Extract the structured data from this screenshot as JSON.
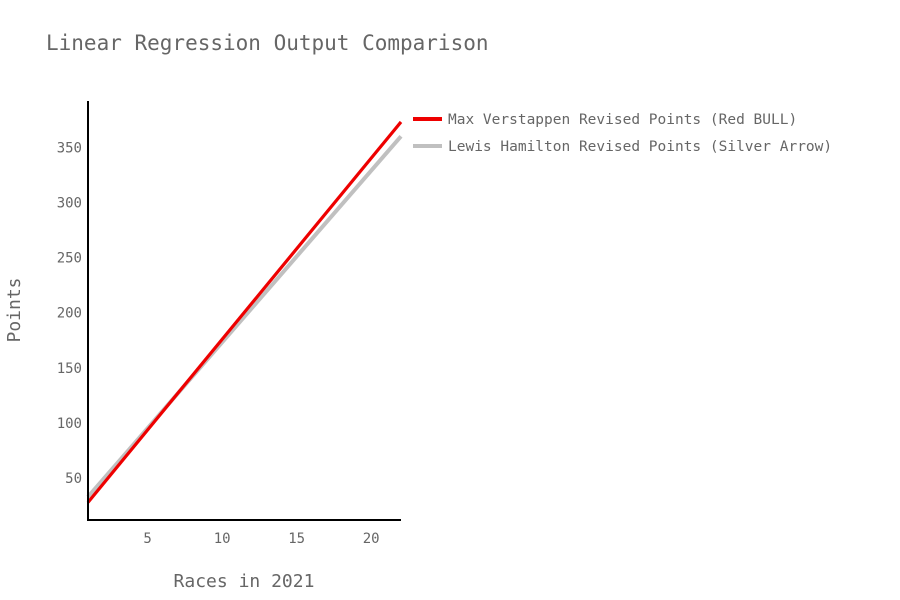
{
  "chart_data": {
    "type": "line",
    "title": "Linear Regression Output Comparison",
    "xlabel": "Races in 2021",
    "ylabel": "Points",
    "xlim": [
      1,
      22
    ],
    "ylim": [
      12,
      392
    ],
    "x_ticks": [
      5,
      10,
      15,
      20
    ],
    "y_ticks": [
      50,
      100,
      150,
      200,
      250,
      300,
      350
    ],
    "grid": false,
    "legend_position": "right",
    "series": [
      {
        "name": "Max Verstappen Revised Points (Red BULL)",
        "color": "#ee0000",
        "x": [
          1,
          22
        ],
        "y": [
          28,
          373
        ]
      },
      {
        "name": "Lewis Hamilton Revised Points (Silver Arrow)",
        "color": "#c0c0c0",
        "x": [
          1,
          22
        ],
        "y": [
          33,
          360
        ]
      }
    ]
  }
}
